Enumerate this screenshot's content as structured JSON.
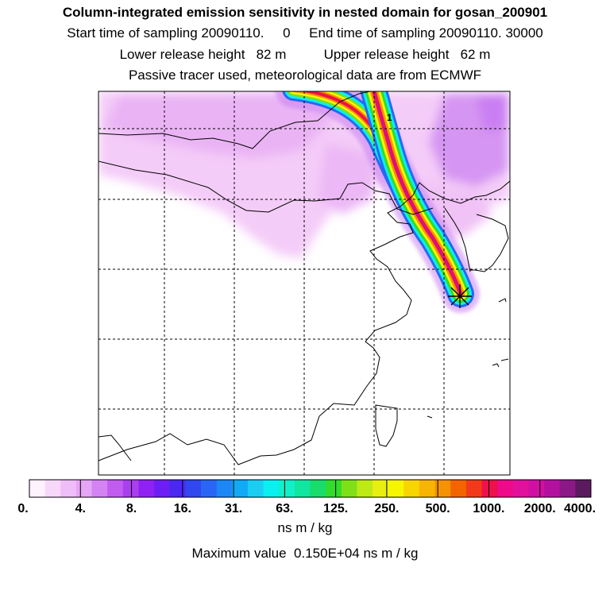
{
  "header": {
    "title": "Column-integrated emission sensitivity in nested domain for gosan_200901",
    "line2": "Start time of sampling 20090110.     0     End time of sampling 20090110. 30000",
    "line3": "Lower release height   82 m          Upper release height   62 m",
    "line4": "Passive tracer used, meteorological data are from ECMWF"
  },
  "chart_data": {
    "type": "heatmap",
    "title": "Column-integrated emission sensitivity in nested domain for gosan_200901",
    "colorbar": {
      "tick_labels": [
        "0.",
        "4.",
        "8.",
        "16.",
        "31.",
        "63.",
        "125.",
        "250.",
        "500.",
        "1000.",
        "2000.",
        "4000."
      ],
      "units": "ns m / kg",
      "colors": [
        "#fff2ff",
        "#f7d8fb",
        "#efbdf7",
        "#e6a5f5",
        "#d483f3",
        "#c05cef",
        "#a93fef",
        "#8f22f2",
        "#6d1ef5",
        "#4a28f2",
        "#3148ee",
        "#2a66f3",
        "#1d87f5",
        "#12aaf5",
        "#1ccdf2",
        "#08f0f0",
        "#10f0c8",
        "#10e6a0",
        "#18dc6c",
        "#31dc2c",
        "#7fe018",
        "#bdea14",
        "#e8ef10",
        "#f6f600",
        "#f8d400",
        "#f7b400",
        "#f59200",
        "#f26400",
        "#f23a1a",
        "#f0104a",
        "#ee0a8a",
        "#e2109c",
        "#cf10a2",
        "#b410a0",
        "#8c1886",
        "#5c1a5e"
      ]
    },
    "max_value_text": "Maximum value  0.150E+04 ns m / kg",
    "receptor": "Gosan",
    "marker_label": "1",
    "gridlines": true
  },
  "colors": {
    "coast": "#000000",
    "grid": "#000000",
    "plume_core": "#f0104a"
  }
}
